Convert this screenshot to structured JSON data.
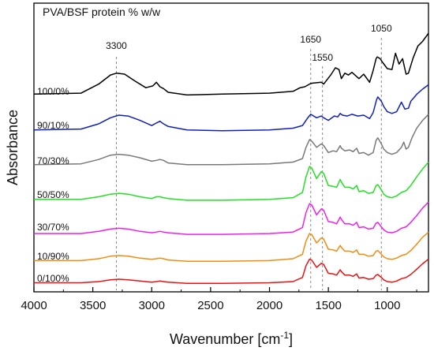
{
  "chart_data": {
    "type": "line",
    "title": "PVA/BSF protein % w/w",
    "xlabel": "Wavenumber [cm",
    "xlabel_sup": "-1",
    "xlabel_end": "]",
    "ylabel": "Absorbance",
    "xlim": [
      4000,
      650
    ],
    "x_reversed": true,
    "y_ticks_shown": false,
    "x_ticks": [
      4000,
      3500,
      3000,
      2500,
      2000,
      1500,
      1000
    ],
    "x_tick_labels": [
      "4000",
      "3500",
      "3000",
      "2500",
      "2000",
      "1500",
      "1000"
    ],
    "peak_markers": [
      {
        "label": "3300",
        "x": 3300
      },
      {
        "label": "1650",
        "x": 1650
      },
      {
        "label": "1550",
        "x": 1550
      },
      {
        "label": "1050",
        "x": 1050
      }
    ],
    "series": [
      {
        "name": "100/0%",
        "color": "#000000",
        "x": [
          4000,
          3600,
          3450,
          3350,
          3300,
          3230,
          3150,
          3050,
          2990,
          2960,
          2930,
          2900,
          2860,
          2700,
          2400,
          2000,
          1800,
          1740,
          1700,
          1660,
          1640,
          1560,
          1540,
          1480,
          1440,
          1410,
          1390,
          1360,
          1330,
          1300,
          1240,
          1200,
          1150,
          1120,
          1095,
          1085,
          1060,
          1040,
          1000,
          960,
          930,
          900,
          870,
          840,
          820,
          780,
          740,
          700,
          650
        ],
        "y": [
          0.05,
          0.06,
          0.16,
          0.26,
          0.28,
          0.27,
          0.2,
          0.12,
          0.14,
          0.18,
          0.13,
          0.11,
          0.07,
          0.04,
          0.05,
          0.06,
          0.08,
          0.12,
          0.13,
          0.16,
          0.17,
          0.18,
          0.16,
          0.26,
          0.34,
          0.32,
          0.22,
          0.28,
          0.26,
          0.29,
          0.22,
          0.27,
          0.18,
          0.31,
          0.44,
          0.46,
          0.44,
          0.4,
          0.33,
          0.32,
          0.5,
          0.38,
          0.44,
          0.27,
          0.28,
          0.45,
          0.58,
          0.63,
          0.72
        ]
      },
      {
        "name": "90/10%",
        "color": "#1020c0",
        "x": [
          4000,
          3600,
          3450,
          3350,
          3280,
          3200,
          3100,
          3000,
          2960,
          2930,
          2900,
          2860,
          2700,
          2400,
          2000,
          1800,
          1720,
          1680,
          1650,
          1600,
          1560,
          1540,
          1500,
          1450,
          1420,
          1400,
          1380,
          1340,
          1300,
          1250,
          1200,
          1150,
          1120,
          1090,
          1080,
          1050,
          1030,
          1000,
          960,
          920,
          880,
          850,
          820,
          800,
          750,
          700,
          650
        ],
        "y": [
          0.03,
          0.04,
          0.1,
          0.17,
          0.2,
          0.19,
          0.14,
          0.08,
          0.11,
          0.13,
          0.1,
          0.07,
          0.03,
          0.02,
          0.03,
          0.05,
          0.08,
          0.16,
          0.21,
          0.17,
          0.19,
          0.17,
          0.14,
          0.19,
          0.18,
          0.22,
          0.2,
          0.19,
          0.21,
          0.19,
          0.2,
          0.16,
          0.23,
          0.38,
          0.41,
          0.36,
          0.3,
          0.24,
          0.22,
          0.24,
          0.35,
          0.27,
          0.28,
          0.36,
          0.44,
          0.5,
          0.55
        ]
      },
      {
        "name": "70/30%",
        "color": "#787878",
        "x": [
          4000,
          3600,
          3450,
          3350,
          3280,
          3200,
          3100,
          3000,
          2960,
          2930,
          2900,
          2860,
          2700,
          2400,
          2000,
          1800,
          1720,
          1690,
          1660,
          1640,
          1600,
          1560,
          1540,
          1500,
          1460,
          1430,
          1400,
          1390,
          1360,
          1320,
          1290,
          1260,
          1240,
          1200,
          1160,
          1120,
          1095,
          1080,
          1050,
          1030,
          1000,
          960,
          920,
          880,
          860,
          840,
          820,
          790,
          750,
          700,
          650
        ],
        "y": [
          0.02,
          0.03,
          0.08,
          0.13,
          0.14,
          0.13,
          0.1,
          0.06,
          0.07,
          0.08,
          0.07,
          0.04,
          0.02,
          0.02,
          0.03,
          0.05,
          0.09,
          0.22,
          0.31,
          0.29,
          0.22,
          0.26,
          0.24,
          0.16,
          0.18,
          0.17,
          0.24,
          0.21,
          0.18,
          0.19,
          0.17,
          0.21,
          0.15,
          0.16,
          0.13,
          0.16,
          0.3,
          0.33,
          0.26,
          0.2,
          0.16,
          0.14,
          0.16,
          0.22,
          0.28,
          0.2,
          0.22,
          0.33,
          0.44,
          0.53,
          0.6
        ]
      },
      {
        "name": "50/50%",
        "color": "#22e022",
        "x": [
          4000,
          3600,
          3450,
          3350,
          3280,
          3200,
          3100,
          3000,
          2960,
          2930,
          2900,
          2860,
          2700,
          2400,
          2000,
          1800,
          1720,
          1690,
          1660,
          1640,
          1600,
          1560,
          1540,
          1500,
          1460,
          1430,
          1400,
          1390,
          1360,
          1320,
          1290,
          1260,
          1240,
          1200,
          1160,
          1120,
          1095,
          1080,
          1050,
          1030,
          1000,
          960,
          920,
          880,
          840,
          800,
          750,
          700,
          650
        ],
        "y": [
          0.02,
          0.02,
          0.05,
          0.08,
          0.09,
          0.08,
          0.05,
          0.03,
          0.05,
          0.05,
          0.04,
          0.03,
          0.01,
          0.01,
          0.02,
          0.04,
          0.1,
          0.28,
          0.4,
          0.38,
          0.26,
          0.34,
          0.32,
          0.18,
          0.17,
          0.16,
          0.25,
          0.22,
          0.16,
          0.16,
          0.14,
          0.18,
          0.11,
          0.12,
          0.09,
          0.1,
          0.18,
          0.19,
          0.13,
          0.08,
          0.05,
          0.04,
          0.06,
          0.1,
          0.12,
          0.18,
          0.28,
          0.37,
          0.45
        ]
      },
      {
        "name": "30/70%",
        "color": "#ee20ee",
        "x": [
          4000,
          3600,
          3450,
          3350,
          3280,
          3200,
          3100,
          3000,
          2960,
          2930,
          2900,
          2860,
          2700,
          2400,
          2000,
          1800,
          1720,
          1690,
          1660,
          1640,
          1600,
          1560,
          1540,
          1500,
          1460,
          1430,
          1400,
          1390,
          1360,
          1320,
          1290,
          1260,
          1240,
          1200,
          1160,
          1120,
          1095,
          1080,
          1050,
          1030,
          1000,
          960,
          920,
          880,
          840,
          800,
          750,
          700,
          650
        ],
        "y": [
          0.02,
          0.02,
          0.05,
          0.08,
          0.09,
          0.08,
          0.05,
          0.03,
          0.04,
          0.05,
          0.04,
          0.03,
          0.01,
          0.01,
          0.02,
          0.04,
          0.1,
          0.3,
          0.42,
          0.4,
          0.27,
          0.35,
          0.33,
          0.18,
          0.17,
          0.15,
          0.24,
          0.21,
          0.15,
          0.15,
          0.13,
          0.17,
          0.1,
          0.11,
          0.08,
          0.09,
          0.16,
          0.17,
          0.11,
          0.07,
          0.04,
          0.03,
          0.05,
          0.09,
          0.11,
          0.17,
          0.26,
          0.36,
          0.44
        ]
      },
      {
        "name": "10/90%",
        "color": "#f08c10",
        "x": [
          4000,
          3600,
          3450,
          3350,
          3280,
          3200,
          3100,
          3000,
          2960,
          2930,
          2900,
          2860,
          2700,
          2400,
          2000,
          1800,
          1720,
          1690,
          1660,
          1640,
          1600,
          1560,
          1540,
          1500,
          1460,
          1430,
          1400,
          1390,
          1360,
          1320,
          1290,
          1260,
          1240,
          1200,
          1160,
          1120,
          1095,
          1080,
          1050,
          1030,
          1000,
          960,
          920,
          880,
          840,
          800,
          750,
          700,
          650
        ],
        "y": [
          0.02,
          0.02,
          0.05,
          0.09,
          0.1,
          0.09,
          0.06,
          0.04,
          0.05,
          0.06,
          0.05,
          0.03,
          0.01,
          0.01,
          0.02,
          0.05,
          0.12,
          0.33,
          0.45,
          0.43,
          0.3,
          0.38,
          0.36,
          0.2,
          0.19,
          0.17,
          0.26,
          0.23,
          0.17,
          0.17,
          0.15,
          0.19,
          0.12,
          0.12,
          0.09,
          0.1,
          0.17,
          0.18,
          0.12,
          0.08,
          0.05,
          0.04,
          0.06,
          0.1,
          0.12,
          0.18,
          0.28,
          0.39,
          0.47
        ]
      },
      {
        "name": "0/100%",
        "color": "#ee1010",
        "x": [
          4000,
          3600,
          3450,
          3350,
          3280,
          3200,
          3100,
          3000,
          2960,
          2930,
          2900,
          2860,
          2700,
          2400,
          2000,
          1800,
          1720,
          1690,
          1660,
          1640,
          1600,
          1560,
          1540,
          1500,
          1460,
          1430,
          1400,
          1390,
          1360,
          1320,
          1290,
          1260,
          1240,
          1200,
          1160,
          1120,
          1095,
          1080,
          1050,
          1030,
          1000,
          960,
          920,
          880,
          840,
          800,
          750,
          700,
          650
        ],
        "y": [
          0.02,
          0.02,
          0.04,
          0.07,
          0.08,
          0.07,
          0.05,
          0.03,
          0.04,
          0.05,
          0.04,
          0.03,
          0.01,
          0.01,
          0.02,
          0.04,
          0.11,
          0.31,
          0.42,
          0.4,
          0.28,
          0.35,
          0.33,
          0.18,
          0.17,
          0.15,
          0.24,
          0.21,
          0.15,
          0.15,
          0.13,
          0.17,
          0.1,
          0.11,
          0.08,
          0.09,
          0.15,
          0.16,
          0.11,
          0.07,
          0.04,
          0.03,
          0.05,
          0.09,
          0.11,
          0.16,
          0.25,
          0.34,
          0.42
        ]
      }
    ]
  }
}
